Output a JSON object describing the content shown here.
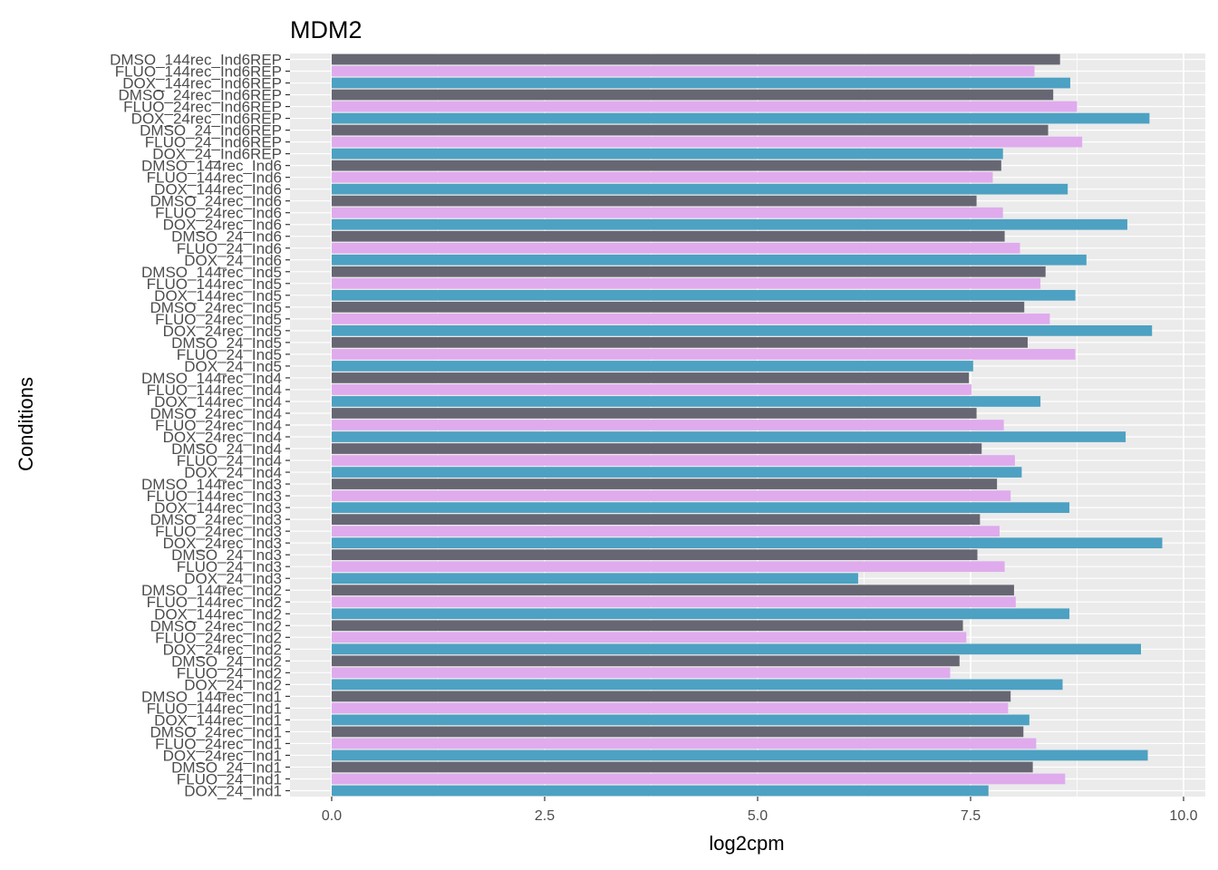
{
  "chart_data": {
    "type": "bar",
    "orientation": "horizontal",
    "title": "MDM2",
    "xlabel": "log2cpm",
    "ylabel": "Conditions",
    "xlim": [
      0,
      10.3
    ],
    "xticks": [
      0,
      2.5,
      5,
      7.5,
      10
    ],
    "xtick_labels": [
      "0.0",
      "2.5",
      "5.0",
      "7.5",
      "10.0"
    ],
    "grid": true,
    "legend": "none",
    "colors": {
      "DMSO": "#676773",
      "FLUO": "#dfabed",
      "DOX": "#4da1c2",
      "panel": "#ebebeb",
      "grid": "#ffffff"
    },
    "categories": [
      "DMSO_144rec_Ind6REP",
      "FLUO_144rec_Ind6REP",
      "DOX_144rec_Ind6REP",
      "DMSO_24rec_Ind6REP",
      "FLUO_24rec_Ind6REP",
      "DOX_24rec_Ind6REP",
      "DMSO_24_Ind6REP",
      "FLUO_24_Ind6REP",
      "DOX_24_Ind6REP",
      "DMSO_144rec_Ind6",
      "FLUO_144rec_Ind6",
      "DOX_144rec_Ind6",
      "DMSO_24rec_Ind6",
      "FLUO_24rec_Ind6",
      "DOX_24rec_Ind6",
      "DMSO_24_Ind6",
      "FLUO_24_Ind6",
      "DOX_24_Ind6",
      "DMSO_144rec_Ind5",
      "FLUO_144rec_Ind5",
      "DOX_144rec_Ind5",
      "DMSO_24rec_Ind5",
      "FLUO_24rec_Ind5",
      "DOX_24rec_Ind5",
      "DMSO_24_Ind5",
      "FLUO_24_Ind5",
      "DOX_24_Ind5",
      "DMSO_144rec_Ind4",
      "FLUO_144rec_Ind4",
      "DOX_144rec_Ind4",
      "DMSO_24rec_Ind4",
      "FLUO_24rec_Ind4",
      "DOX_24rec_Ind4",
      "DMSO_24_Ind4",
      "FLUO_24_Ind4",
      "DOX_24_Ind4",
      "DMSO_144rec_Ind3",
      "FLUO_144rec_Ind3",
      "DOX_144rec_Ind3",
      "DMSO_24rec_Ind3",
      "FLUO_24rec_Ind3",
      "DOX_24rec_Ind3",
      "DMSO_24_Ind3",
      "FLUO_24_Ind3",
      "DOX_24_Ind3",
      "DMSO_144rec_Ind2",
      "FLUO_144rec_Ind2",
      "DOX_144rec_Ind2",
      "DMSO_24rec_Ind2",
      "FLUO_24rec_Ind2",
      "DOX_24rec_Ind2",
      "DMSO_24_Ind2",
      "FLUO_24_Ind2",
      "DOX_24_Ind2",
      "DMSO_144rec_Ind1",
      "FLUO_144rec_Ind1",
      "DOX_144rec_Ind1",
      "DMSO_24rec_Ind1",
      "FLUO_24rec_Ind1",
      "DOX_24rec_Ind1",
      "DMSO_24_Ind1",
      "FLUO_24_Ind1",
      "DOX_24_Ind1"
    ],
    "values": [
      8.55,
      8.25,
      8.67,
      8.47,
      8.75,
      9.6,
      8.41,
      8.81,
      7.88,
      7.86,
      7.76,
      8.64,
      7.57,
      7.88,
      9.34,
      7.9,
      8.08,
      8.86,
      8.38,
      8.32,
      8.73,
      8.13,
      8.43,
      9.63,
      8.17,
      8.73,
      7.53,
      7.48,
      7.51,
      8.32,
      7.57,
      7.89,
      9.32,
      7.63,
      8.02,
      8.1,
      7.81,
      7.97,
      8.66,
      7.61,
      7.84,
      9.75,
      7.58,
      7.9,
      6.18,
      8.01,
      8.03,
      8.66,
      7.41,
      7.45,
      9.5,
      7.37,
      7.26,
      8.58,
      7.97,
      7.94,
      8.19,
      8.12,
      8.27,
      9.58,
      8.23,
      8.61,
      7.71
    ]
  }
}
